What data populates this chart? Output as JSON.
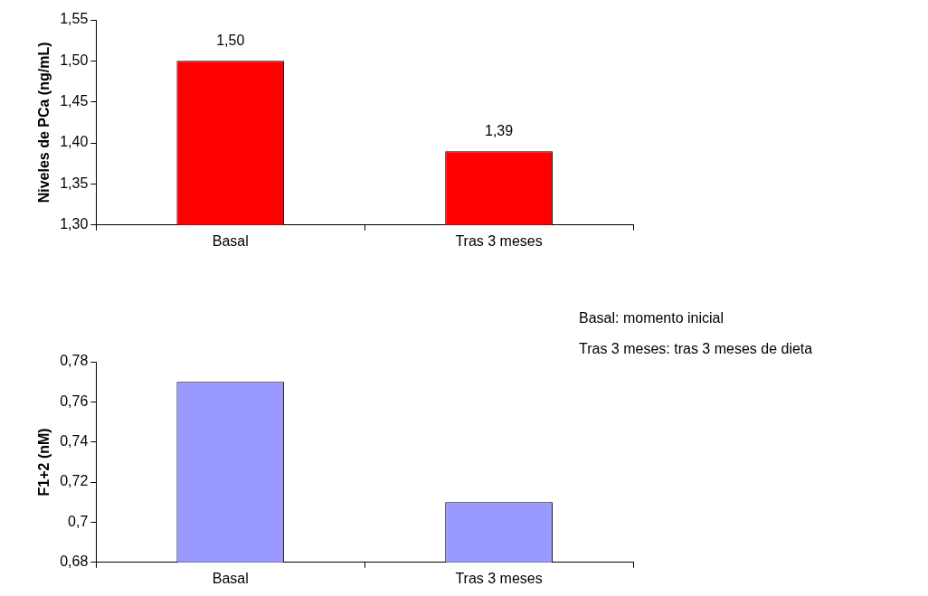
{
  "chart_data": [
    {
      "type": "bar",
      "ylabel": "Niveles de PCa (ng/mL)",
      "categories": [
        "Basal",
        "Tras 3 meses"
      ],
      "values": [
        1.5,
        1.39
      ],
      "value_labels": [
        "1,50",
        "1,39"
      ],
      "color": "#ff0000",
      "ylim": [
        1.3,
        1.55
      ],
      "yticks": [
        {
          "value": 1.3,
          "label": "1,30"
        },
        {
          "value": 1.35,
          "label": "1,35"
        },
        {
          "value": 1.4,
          "label": "1,40"
        },
        {
          "value": 1.45,
          "label": "1,45"
        },
        {
          "value": 1.5,
          "label": "1,50"
        },
        {
          "value": 1.55,
          "label": "1,55"
        }
      ]
    },
    {
      "type": "bar",
      "ylabel": "F1+2 (nM)",
      "categories": [
        "Basal",
        "Tras 3 meses"
      ],
      "values": [
        0.77,
        0.71
      ],
      "color": "#9999ff",
      "ylim": [
        0.68,
        0.78
      ],
      "yticks": [
        {
          "value": 0.68,
          "label": "0,68"
        },
        {
          "value": 0.7,
          "label": "0,7"
        },
        {
          "value": 0.72,
          "label": "0,72"
        },
        {
          "value": 0.74,
          "label": "0,74"
        },
        {
          "value": 0.76,
          "label": "0,76"
        },
        {
          "value": 0.78,
          "label": "0,78"
        }
      ],
      "annotations": [
        "Basal: momento inicial",
        "Tras 3 meses: tras 3 meses de dieta"
      ]
    }
  ]
}
